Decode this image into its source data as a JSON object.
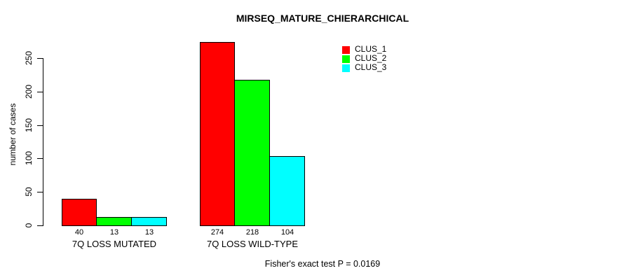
{
  "chart_data": {
    "type": "bar",
    "title": "MIRSEQ_MATURE_CHIERARCHICAL",
    "xlabel": "",
    "ylabel": "number of cases",
    "categories": [
      "7Q LOSS MUTATED",
      "7Q LOSS WILD-TYPE"
    ],
    "series": [
      {
        "name": "CLUS_1",
        "color": "#FF0000",
        "values": [
          40,
          274
        ]
      },
      {
        "name": "CLUS_2",
        "color": "#00FF00",
        "values": [
          13,
          218
        ]
      },
      {
        "name": "CLUS_3",
        "color": "#00FFFF",
        "values": [
          13,
          104
        ]
      }
    ],
    "yticks": [
      0,
      50,
      100,
      150,
      200,
      250
    ],
    "ylim": [
      0,
      250
    ],
    "grid": false,
    "bar_value_labels_shown": true,
    "legend_position": "top-right",
    "annotation": "Fisher's exact test P = 0.0169"
  },
  "colors": {
    "background": "#FFFFFF",
    "bar_border": "#000000",
    "text": "#000000"
  }
}
